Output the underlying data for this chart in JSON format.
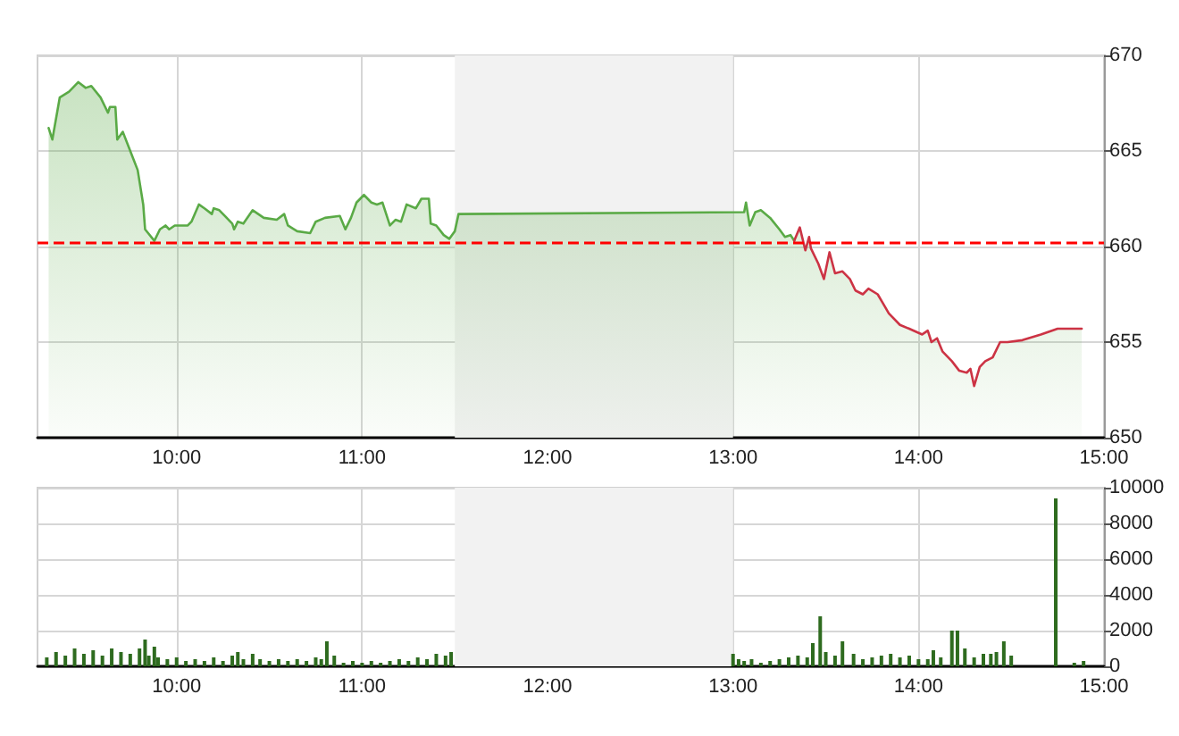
{
  "chart_data": [
    {
      "type": "area",
      "xlim": [
        9.25,
        15
      ],
      "xticks": [
        {
          "value": 10,
          "label": "10:00"
        },
        {
          "value": 11,
          "label": "11:00"
        },
        {
          "value": 12,
          "label": "12:00"
        },
        {
          "value": 13,
          "label": "13:00"
        },
        {
          "value": 14,
          "label": "14:00"
        },
        {
          "value": 15,
          "label": "15:00"
        }
      ],
      "ylim": [
        650,
        670
      ],
      "yticks": [
        650,
        655,
        660,
        665,
        670
      ],
      "grid": true,
      "series": [
        {
          "color": "#5aaa46",
          "x": [
            9.31,
            9.33,
            9.37,
            9.42,
            9.47,
            9.51,
            9.54,
            9.59,
            9.63,
            9.64,
            9.67,
            9.68,
            9.71,
            9.75,
            9.79,
            9.82,
            9.83,
            9.88,
            9.91,
            9.94,
            9.96,
            9.99,
            10.06,
            10.08,
            10.12,
            10.15,
            10.19,
            10.2,
            10.23,
            10.3,
            10.31,
            10.33,
            10.36,
            10.41,
            10.47,
            10.54,
            10.58,
            10.6,
            10.65,
            10.72,
            10.75,
            10.8,
            10.88,
            10.91,
            10.94,
            10.97,
            11.01,
            11.05,
            11.08,
            11.11,
            11.13,
            11.15,
            11.18,
            11.21,
            11.24,
            11.29,
            11.32,
            11.36,
            11.37,
            11.4,
            11.44,
            11.47,
            11.5,
            11.52,
            13.06,
            13.07,
            13.09,
            13.12,
            13.15,
            13.2,
            13.25,
            13.28,
            13.31,
            13.33
          ],
          "values": [
            666.2,
            665.6,
            667.8,
            668.1,
            668.6,
            668.3,
            668.4,
            667.8,
            667.0,
            667.3,
            667.3,
            665.6,
            666.0,
            665.0,
            664.0,
            662.2,
            660.9,
            660.3,
            660.9,
            661.1,
            660.9,
            661.1,
            661.1,
            661.3,
            662.2,
            662.0,
            661.7,
            662.0,
            661.9,
            661.2,
            660.9,
            661.3,
            661.2,
            661.9,
            661.5,
            661.4,
            661.7,
            661.1,
            660.8,
            660.7,
            661.3,
            661.5,
            661.6,
            660.9,
            661.5,
            662.3,
            662.7,
            662.3,
            662.2,
            662.3,
            661.7,
            661.1,
            661.4,
            661.3,
            662.2,
            662.0,
            662.5,
            662.5,
            661.2,
            661.1,
            660.6,
            660.4,
            660.8,
            661.7,
            661.8,
            662.3,
            661.1,
            661.8,
            661.9,
            661.5,
            660.9,
            660.5,
            660.6,
            660.3
          ]
        },
        {
          "color": "#cc3344",
          "x": [
            13.33,
            13.36,
            13.39,
            13.41,
            13.42,
            13.46,
            13.49,
            13.52,
            13.55,
            13.59,
            13.63,
            13.66,
            13.7,
            13.73,
            13.78,
            13.81,
            13.84,
            13.9,
            13.95,
            14.02,
            14.05,
            14.07,
            14.1,
            14.13,
            14.18,
            14.22,
            14.26,
            14.28,
            14.3,
            14.33,
            14.36,
            14.4,
            14.44,
            14.48,
            14.56,
            14.66,
            14.75,
            14.88
          ],
          "values": [
            660.3,
            661.0,
            659.8,
            660.5,
            659.9,
            659.1,
            658.3,
            659.7,
            658.6,
            658.7,
            658.3,
            657.7,
            657.5,
            657.8,
            657.5,
            657.0,
            656.5,
            655.9,
            655.7,
            655.4,
            655.6,
            655.0,
            655.2,
            654.5,
            654.0,
            653.5,
            653.4,
            653.6,
            652.7,
            653.7,
            654.0,
            654.2,
            655.0,
            655.0,
            655.1,
            655.4,
            655.7,
            655.7
          ]
        }
      ],
      "ref_lines": [
        {
          "axis": "y",
          "value": 660.2,
          "color": "#ff0000",
          "line_style": "dashed"
        }
      ],
      "bands": [
        {
          "axis": "x",
          "from": 11.5,
          "to": 13,
          "color": "#f2f2f2"
        }
      ]
    },
    {
      "type": "bar",
      "xlim": [
        9.25,
        15
      ],
      "xticks": [
        {
          "value": 10,
          "label": "10:00"
        },
        {
          "value": 11,
          "label": "11:00"
        },
        {
          "value": 12,
          "label": "12:00"
        },
        {
          "value": 13,
          "label": "13:00"
        },
        {
          "value": 14,
          "label": "14:00"
        },
        {
          "value": 15,
          "label": "15:00"
        }
      ],
      "ylim": [
        0,
        10000
      ],
      "yticks": [
        0,
        2000,
        4000,
        6000,
        8000,
        10000
      ],
      "grid": true,
      "series": [
        {
          "color": "#2e6b1f",
          "x": [
            9.3,
            9.35,
            9.4,
            9.45,
            9.5,
            9.55,
            9.6,
            9.65,
            9.7,
            9.75,
            9.8,
            9.83,
            9.85,
            9.88,
            9.9,
            9.95,
            10.0,
            10.05,
            10.1,
            10.15,
            10.2,
            10.25,
            10.3,
            10.33,
            10.36,
            10.41,
            10.45,
            10.5,
            10.55,
            10.6,
            10.65,
            10.7,
            10.75,
            10.78,
            10.81,
            10.85,
            10.9,
            10.95,
            11.0,
            11.05,
            11.1,
            11.15,
            11.2,
            11.25,
            11.3,
            11.35,
            11.4,
            11.45,
            11.48,
            13.0,
            13.03,
            13.06,
            13.1,
            13.15,
            13.2,
            13.25,
            13.3,
            13.35,
            13.4,
            13.43,
            13.47,
            13.5,
            13.55,
            13.59,
            13.65,
            13.7,
            13.75,
            13.8,
            13.85,
            13.9,
            13.95,
            14.0,
            14.05,
            14.08,
            14.12,
            14.18,
            14.21,
            14.25,
            14.3,
            14.35,
            14.39,
            14.42,
            14.46,
            14.5,
            14.74,
            14.84,
            14.89
          ],
          "values": [
            500,
            800,
            600,
            1000,
            700,
            900,
            600,
            1000,
            800,
            700,
            1000,
            1500,
            600,
            1100,
            500,
            400,
            500,
            300,
            400,
            300,
            500,
            300,
            600,
            800,
            400,
            700,
            400,
            300,
            400,
            300,
            400,
            300,
            500,
            400,
            1400,
            600,
            200,
            300,
            200,
            300,
            200,
            300,
            400,
            300,
            500,
            400,
            700,
            600,
            800,
            700,
            400,
            300,
            400,
            200,
            300,
            400,
            500,
            600,
            500,
            1300,
            2800,
            800,
            600,
            1400,
            700,
            400,
            500,
            600,
            700,
            500,
            600,
            400,
            400,
            900,
            500,
            2000,
            2000,
            1000,
            500,
            700,
            700,
            800,
            1400,
            600,
            9400,
            200,
            300
          ]
        }
      ],
      "bands": [
        {
          "axis": "x",
          "from": 11.5,
          "to": 13,
          "color": "#f2f2f2"
        }
      ]
    }
  ]
}
